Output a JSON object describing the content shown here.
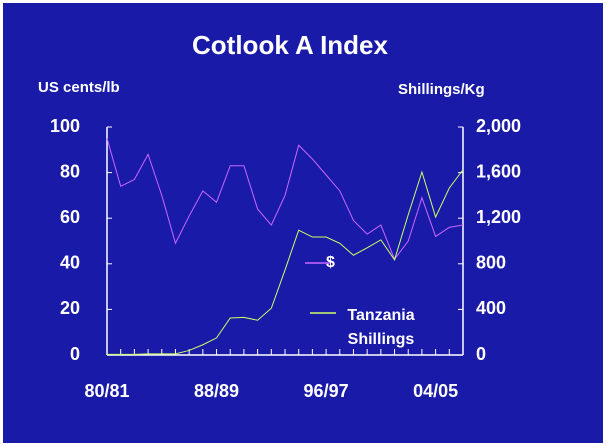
{
  "chart_data": {
    "type": "line",
    "title": "Cotlook A Index",
    "ylabel": "US cents/lb",
    "y2label": "Shillings/Kg",
    "categories": [
      "80/81",
      null,
      null,
      null,
      null,
      null,
      null,
      null,
      "88/89",
      null,
      null,
      null,
      null,
      null,
      null,
      null,
      "96/97",
      null,
      null,
      null,
      null,
      null,
      null,
      null,
      "04/05",
      null,
      null
    ],
    "series": [
      {
        "name": "$",
        "color": "#cc66ff",
        "values": [
          95,
          74,
          77,
          88,
          70,
          49,
          61,
          72,
          67,
          83,
          83,
          64,
          57,
          70,
          92,
          86,
          79,
          72,
          59,
          53,
          57,
          42,
          50,
          69,
          52,
          56,
          57
        ]
      },
      {
        "name": "Tanzania Shillings",
        "color": "#ccff66",
        "axis": "y2",
        "values": [
          5,
          5,
          5,
          10,
          10,
          10,
          40,
          90,
          150,
          325,
          330,
          305,
          410,
          745,
          1095,
          1035,
          1035,
          980,
          875,
          940,
          1010,
          835,
          1230,
          1605,
          1210,
          1465,
          1625
        ]
      }
    ],
    "ylim": [
      0,
      100
    ],
    "yticks": [
      0,
      20,
      40,
      60,
      80,
      100
    ],
    "y2lim": [
      0,
      2000
    ],
    "y2ticks": [
      0,
      400,
      800,
      {
        "value": 1200,
        "label": "1,200"
      },
      {
        "value": 1600,
        "label": "1,600"
      },
      {
        "value": 2000,
        "label": "2,000"
      }
    ],
    "grid": false
  }
}
